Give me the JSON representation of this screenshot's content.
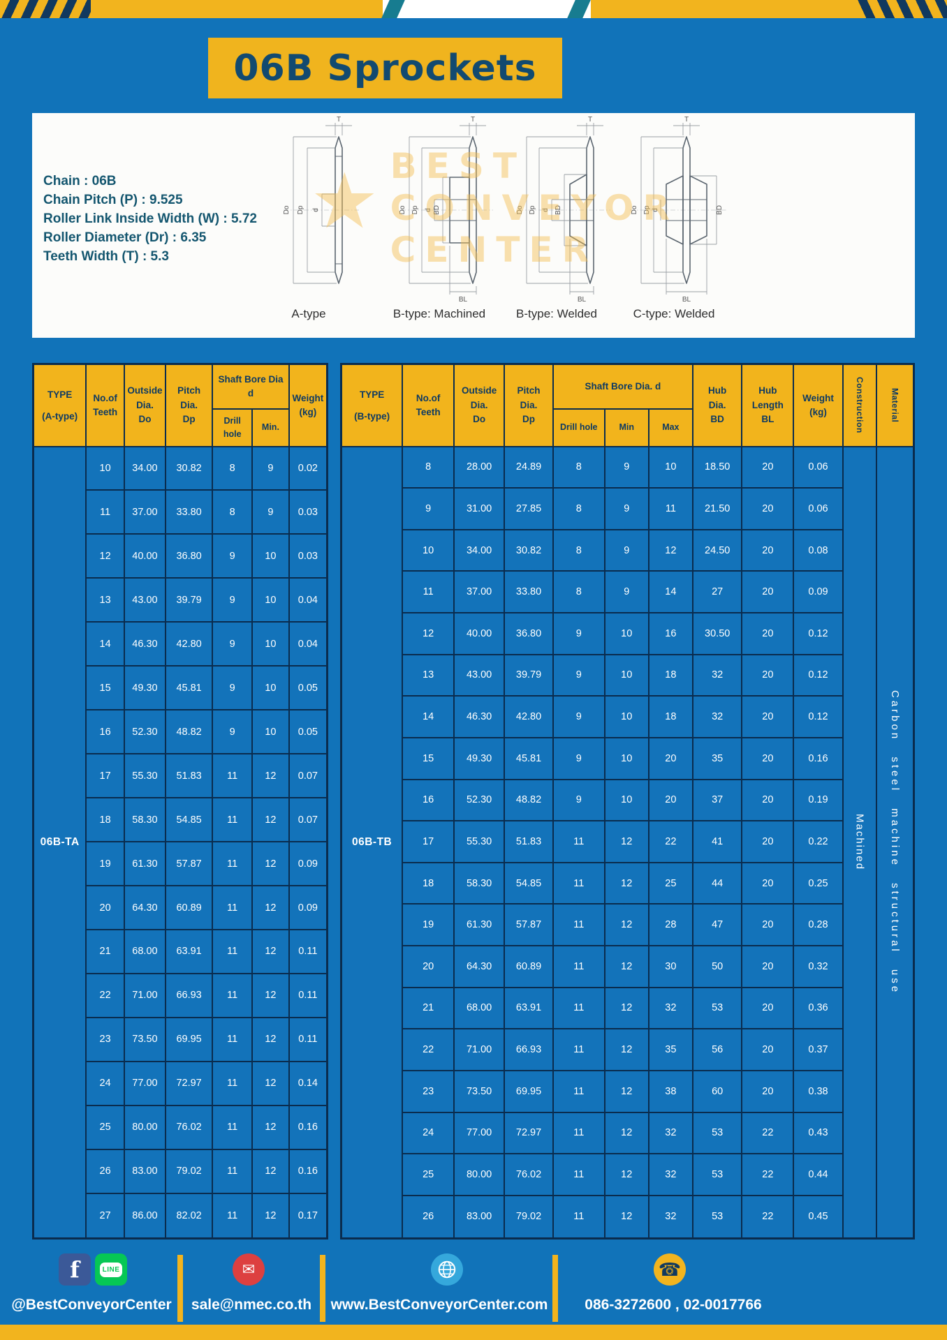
{
  "page": {
    "title": "06B Sprockets"
  },
  "colors": {
    "background_blue": "#1173b9",
    "accent_yellow": "#f2b41e",
    "border_navy": "#0a2c4e",
    "header_text_navy": "#0e3a63",
    "title_text": "#124a70",
    "facebook_blue": "#3b5998",
    "line_green": "#06c755",
    "email_red": "#dd4040",
    "globe_blue": "#35a8dc"
  },
  "specs": {
    "lines": [
      "Chain : 06B",
      "Chain Pitch (P) : 9.525",
      "Roller Link Inside Width (W) : 5.72",
      "Roller Diameter (Dr) : 6.35",
      "Teeth Width (T) : 5.3"
    ]
  },
  "watermark": {
    "lines": [
      "BEST",
      "CONVEYOR",
      "CENTER"
    ]
  },
  "diagrams": {
    "panels": [
      {
        "label": "A-type",
        "t": "T",
        "do": "Do",
        "dp": "Dp",
        "d": "d"
      },
      {
        "label": "B-type: Machined",
        "t": "T",
        "do": "Do",
        "dp": "Dp",
        "d": "d",
        "bd": "BD",
        "bl": "BL"
      },
      {
        "label": "B-type: Welded",
        "t": "T",
        "do": "Do",
        "dp": "Dp",
        "d": "d",
        "bd": "BD",
        "bl": "BL"
      },
      {
        "label": "C-type: Welded",
        "t": "T",
        "do": "Do",
        "dp": "Dp",
        "d": "d",
        "bd": "BD",
        "bl": "BL"
      }
    ]
  },
  "table_a": {
    "header": {
      "type": [
        "TYPE",
        "(A-type)"
      ],
      "teeth": [
        "No.of",
        "Teeth"
      ],
      "outside": [
        "Outside",
        "Dia.",
        "Do"
      ],
      "pitch": [
        "Pitch Dia.",
        "Dp"
      ],
      "bore_group": "Shaft Bore Dia d",
      "drill": "Drill hole",
      "min": "Min.",
      "weight": [
        "Weight",
        "(kg)"
      ]
    },
    "type_value": "06B-TA",
    "rows": [
      [
        "10",
        "34.00",
        "30.82",
        "8",
        "9",
        "0.02"
      ],
      [
        "11",
        "37.00",
        "33.80",
        "8",
        "9",
        "0.03"
      ],
      [
        "12",
        "40.00",
        "36.80",
        "9",
        "10",
        "0.03"
      ],
      [
        "13",
        "43.00",
        "39.79",
        "9",
        "10",
        "0.04"
      ],
      [
        "14",
        "46.30",
        "42.80",
        "9",
        "10",
        "0.04"
      ],
      [
        "15",
        "49.30",
        "45.81",
        "9",
        "10",
        "0.05"
      ],
      [
        "16",
        "52.30",
        "48.82",
        "9",
        "10",
        "0.05"
      ],
      [
        "17",
        "55.30",
        "51.83",
        "11",
        "12",
        "0.07"
      ],
      [
        "18",
        "58.30",
        "54.85",
        "11",
        "12",
        "0.07"
      ],
      [
        "19",
        "61.30",
        "57.87",
        "11",
        "12",
        "0.09"
      ],
      [
        "20",
        "64.30",
        "60.89",
        "11",
        "12",
        "0.09"
      ],
      [
        "21",
        "68.00",
        "63.91",
        "11",
        "12",
        "0.11"
      ],
      [
        "22",
        "71.00",
        "66.93",
        "11",
        "12",
        "0.11"
      ],
      [
        "23",
        "73.50",
        "69.95",
        "11",
        "12",
        "0.11"
      ],
      [
        "24",
        "77.00",
        "72.97",
        "11",
        "12",
        "0.14"
      ],
      [
        "25",
        "80.00",
        "76.02",
        "11",
        "12",
        "0.16"
      ],
      [
        "26",
        "83.00",
        "79.02",
        "11",
        "12",
        "0.16"
      ],
      [
        "27",
        "86.00",
        "82.02",
        "11",
        "12",
        "0.17"
      ]
    ]
  },
  "table_b": {
    "header": {
      "type": [
        "TYPE",
        "(B-type)"
      ],
      "teeth": [
        "No.of",
        "Teeth"
      ],
      "outside": [
        "Outside",
        "Dia.",
        "Do"
      ],
      "pitch": [
        "Pitch",
        "Dia.",
        "Dp"
      ],
      "bore_group": "Shaft Bore Dia. d",
      "drill": "Drill hole",
      "min": "Min",
      "max": "Max",
      "hub_dia": [
        "Hub",
        "Dia.",
        "BD"
      ],
      "hub_len": [
        "Hub",
        "Length",
        "BL"
      ],
      "weight": [
        "Weight",
        "(kg)"
      ],
      "construction": "Construction",
      "material": "Material"
    },
    "type_value": "06B-TB",
    "construction_value": "Machined",
    "material_value": "Carbon steel machine structural use",
    "rows": [
      [
        "8",
        "28.00",
        "24.89",
        "8",
        "9",
        "10",
        "18.50",
        "20",
        "0.06"
      ],
      [
        "9",
        "31.00",
        "27.85",
        "8",
        "9",
        "11",
        "21.50",
        "20",
        "0.06"
      ],
      [
        "10",
        "34.00",
        "30.82",
        "8",
        "9",
        "12",
        "24.50",
        "20",
        "0.08"
      ],
      [
        "11",
        "37.00",
        "33.80",
        "8",
        "9",
        "14",
        "27",
        "20",
        "0.09"
      ],
      [
        "12",
        "40.00",
        "36.80",
        "9",
        "10",
        "16",
        "30.50",
        "20",
        "0.12"
      ],
      [
        "13",
        "43.00",
        "39.79",
        "9",
        "10",
        "18",
        "32",
        "20",
        "0.12"
      ],
      [
        "14",
        "46.30",
        "42.80",
        "9",
        "10",
        "18",
        "32",
        "20",
        "0.12"
      ],
      [
        "15",
        "49.30",
        "45.81",
        "9",
        "10",
        "20",
        "35",
        "20",
        "0.16"
      ],
      [
        "16",
        "52.30",
        "48.82",
        "9",
        "10",
        "20",
        "37",
        "20",
        "0.19"
      ],
      [
        "17",
        "55.30",
        "51.83",
        "11",
        "12",
        "22",
        "41",
        "20",
        "0.22"
      ],
      [
        "18",
        "58.30",
        "54.85",
        "11",
        "12",
        "25",
        "44",
        "20",
        "0.25"
      ],
      [
        "19",
        "61.30",
        "57.87",
        "11",
        "12",
        "28",
        "47",
        "20",
        "0.28"
      ],
      [
        "20",
        "64.30",
        "60.89",
        "11",
        "12",
        "30",
        "50",
        "20",
        "0.32"
      ],
      [
        "21",
        "68.00",
        "63.91",
        "11",
        "12",
        "32",
        "53",
        "20",
        "0.36"
      ],
      [
        "22",
        "71.00",
        "66.93",
        "11",
        "12",
        "35",
        "56",
        "20",
        "0.37"
      ],
      [
        "23",
        "73.50",
        "69.95",
        "11",
        "12",
        "38",
        "60",
        "20",
        "0.38"
      ],
      [
        "24",
        "77.00",
        "72.97",
        "11",
        "12",
        "32",
        "53",
        "22",
        "0.43"
      ],
      [
        "25",
        "80.00",
        "76.02",
        "11",
        "12",
        "32",
        "53",
        "22",
        "0.44"
      ],
      [
        "26",
        "83.00",
        "79.02",
        "11",
        "12",
        "32",
        "53",
        "22",
        "0.45"
      ]
    ]
  },
  "footer": {
    "handle": "@BestConveyorCenter",
    "email": "sale@nmec.co.th",
    "website": "www.BestConveyorCenter.com",
    "phone": "086-3272600 , 02-0017766",
    "icon_glyphs": {
      "facebook": "f",
      "line": "LINE",
      "email": "✉",
      "phone": "☎"
    }
  }
}
